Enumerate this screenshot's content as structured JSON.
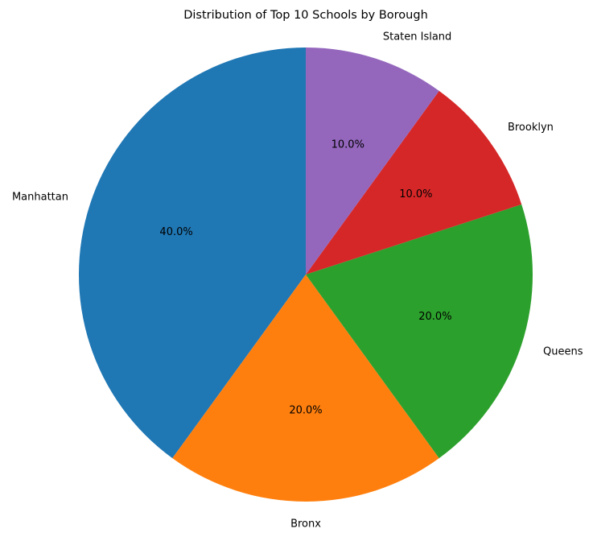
{
  "chart_data": {
    "type": "pie",
    "title": "Distribution of Top 10 Schools by Borough",
    "categories": [
      "Manhattan",
      "Bronx",
      "Queens",
      "Brooklyn",
      "Staten Island"
    ],
    "values": [
      40.0,
      20.0,
      20.0,
      10.0,
      10.0
    ],
    "percent_labels": [
      "40.0%",
      "20.0%",
      "20.0%",
      "10.0%",
      "10.0%"
    ],
    "colors": [
      "#1f77b4",
      "#ff7f0e",
      "#2ca02c",
      "#d62728",
      "#9467bd"
    ],
    "start_angle_deg": 90,
    "direction": "counterclockwise",
    "legend": "none"
  }
}
